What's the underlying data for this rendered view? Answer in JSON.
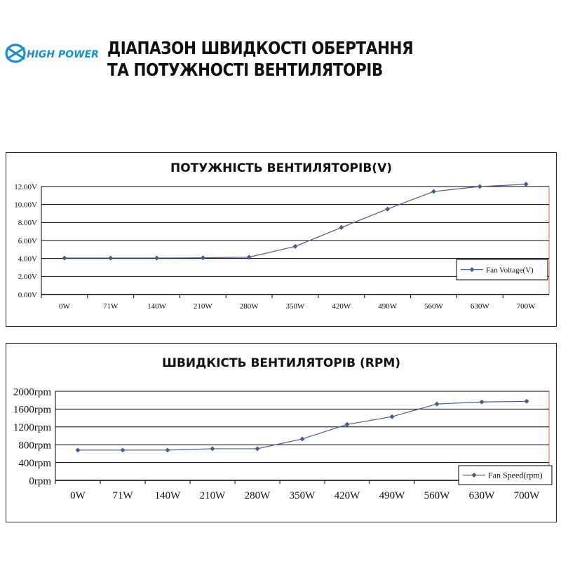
{
  "header": {
    "title_line1": "ДІАПАЗОН ШВИДКОСТІ ОБЕРТАННЯ",
    "title_line2": "ТА ПОТУЖНОСТІ ВЕНТИЛЯТОРІВ"
  },
  "logo": {
    "text": "HIGH POWER",
    "color": "#1a8fd0"
  },
  "colors": {
    "series": "#4a5a8c",
    "plot_border": "#e06060",
    "grid": "#000000"
  },
  "chart_data": [
    {
      "type": "line",
      "title": "ПОТУЖНІСТЬ ВЕНТИЛЯТОРІВ(V)",
      "categories": [
        "0W",
        "71W",
        "140W",
        "210W",
        "280W",
        "350W",
        "420W",
        "490W",
        "560W",
        "630W",
        "700W"
      ],
      "y_ticks": [
        "0.00V",
        "2.00V",
        "4.00V",
        "6.00V",
        "8.00V",
        "10.00V",
        "12.00V"
      ],
      "ylim": [
        0,
        12
      ],
      "grid": true,
      "legend_position": "bottom-right",
      "series": [
        {
          "name": "Fan Voltage(V)",
          "values": [
            4.05,
            4.05,
            4.05,
            4.08,
            4.15,
            5.35,
            7.45,
            9.5,
            11.45,
            12.0,
            12.25
          ]
        }
      ]
    },
    {
      "type": "line",
      "title": "ШВИДКІСТЬ ВЕНТИЛЯТОРІВ (RPM)",
      "categories": [
        "0W",
        "71W",
        "140W",
        "210W",
        "280W",
        "350W",
        "420W",
        "490W",
        "560W",
        "630W",
        "700W"
      ],
      "y_ticks": [
        "0rpm",
        "400rpm",
        "800rpm",
        "1200rpm",
        "1600rpm",
        "2000rpm"
      ],
      "ylim": [
        0,
        2000
      ],
      "grid": true,
      "legend_position": "bottom-right",
      "series": [
        {
          "name": "Fan Speed(rpm)",
          "values": [
            680,
            680,
            680,
            710,
            710,
            930,
            1255,
            1430,
            1715,
            1760,
            1775
          ]
        }
      ]
    }
  ]
}
